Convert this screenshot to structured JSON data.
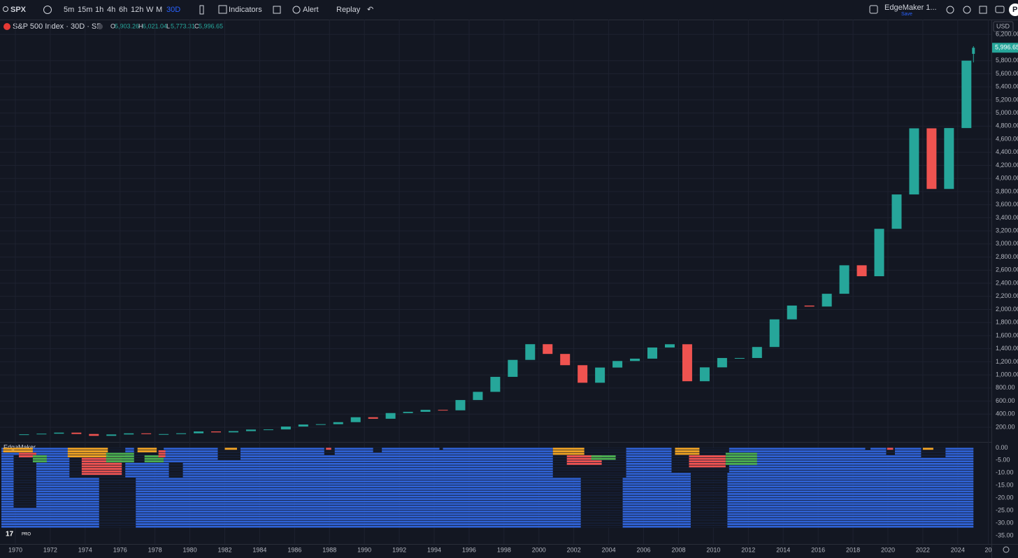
{
  "toolbar": {
    "symbol": "SPX",
    "intervals": [
      "5m",
      "15m",
      "1h",
      "4h",
      "6h",
      "12h",
      "W",
      "M",
      "30D"
    ],
    "indicators": "Indicators",
    "alert": "Alert",
    "replay": "Replay",
    "layout_name": "EdgeMaker 1...",
    "layout_status": "Save",
    "avatar": "P",
    "currency": "USD",
    "pro_badge": "PRO"
  },
  "chart_data": [
    {
      "type": "candlestick",
      "title": "S&P 500 Index · 30D · SP",
      "up_color": "#26a69a",
      "down_color": "#ef5350",
      "x": [
        1970,
        1971,
        1972,
        1973,
        1974,
        1975,
        1976,
        1977,
        1978,
        1979,
        1980,
        1981,
        1982,
        1983,
        1984,
        1985,
        1986,
        1987,
        1988,
        1989,
        1990,
        1991,
        1992,
        1993,
        1994,
        1995,
        1996,
        1997,
        1998,
        1999,
        2000,
        2001,
        2002,
        2003,
        2004,
        2005,
        2006,
        2007,
        2008,
        2009,
        2010,
        2011,
        2012,
        2013,
        2014,
        2015,
        2016,
        2017,
        2018,
        2019,
        2020,
        2021,
        2022,
        2023,
        2024
      ],
      "values": [
        92,
        102,
        118,
        97,
        69,
        90,
        107,
        95,
        96,
        108,
        136,
        122,
        141,
        165,
        167,
        211,
        242,
        247,
        278,
        353,
        330,
        417,
        436,
        466,
        459,
        616,
        741,
        970,
        1229,
        1469,
        1320,
        1148,
        880,
        1112,
        1212,
        1248,
        1418,
        1468,
        903,
        1115,
        1258,
        1258,
        1426,
        1848,
        2059,
        2044,
        2239,
        2674,
        2507,
        3231,
        3756,
        4766,
        3840,
        4770,
        5800
      ],
      "last": {
        "x": 2024.9,
        "labels": [
          "O",
          "H",
          "L",
          "C"
        ],
        "values": [
          5903.26,
          6021.04,
          5773.31,
          5996.65
        ],
        "value_labels": [
          "5,903.26",
          "6,021.04",
          "5,773.31",
          "5,996.65"
        ]
      },
      "xlim": [
        1969.12,
        2025.93
      ],
      "ylim": [
        -24,
        6427
      ],
      "xticks": [
        1970,
        1972,
        1974,
        1976,
        1978,
        1980,
        1982,
        1984,
        1986,
        1988,
        1990,
        1992,
        1994,
        1996,
        1998,
        2000,
        2002,
        2004,
        2006,
        2008,
        2010,
        2012,
        2014,
        2016,
        2018,
        2020,
        2022,
        2024,
        {
          "value": 2025.75,
          "label": "20"
        }
      ],
      "yticks": [
        {
          "value": 200,
          "label": "200.00"
        },
        {
          "value": 400,
          "label": "400.00"
        },
        {
          "value": 600,
          "label": "600.00"
        },
        {
          "value": 800,
          "label": "800.00"
        },
        {
          "value": 1000,
          "label": "1,000.00"
        },
        {
          "value": 1200,
          "label": "1,200.00"
        },
        {
          "value": 1400,
          "label": "1,400.00"
        },
        {
          "value": 1600,
          "label": "1,600.00"
        },
        {
          "value": 1800,
          "label": "1,800.00"
        },
        {
          "value": 2000,
          "label": "2,000.00"
        },
        {
          "value": 2200,
          "label": "2,200.00"
        },
        {
          "value": 2400,
          "label": "2,400.00"
        },
        {
          "value": 2600,
          "label": "2,600.00"
        },
        {
          "value": 2800,
          "label": "2,800.00"
        },
        {
          "value": 3000,
          "label": "3,000.00"
        },
        {
          "value": 3200,
          "label": "3,200.00"
        },
        {
          "value": 3400,
          "label": "3,400.00"
        },
        {
          "value": 3600,
          "label": "3,600.00"
        },
        {
          "value": 3800,
          "label": "3,800.00"
        },
        {
          "value": 4000,
          "label": "4,000.00"
        },
        {
          "value": 4200,
          "label": "4,200.00"
        },
        {
          "value": 4400,
          "label": "4,400.00"
        },
        {
          "value": 4600,
          "label": "4,600.00"
        },
        {
          "value": 4800,
          "label": "4,800.00"
        },
        {
          "value": 5000,
          "label": "5,000.00"
        },
        {
          "value": 5200,
          "label": "5,200.00"
        },
        {
          "value": 5400,
          "label": "5,400.00"
        },
        {
          "value": 5600,
          "label": "5,600.00"
        },
        {
          "value": 5800,
          "label": "5,800.00"
        },
        {
          "value": 6200,
          "label": "6,200.00"
        }
      ],
      "grid": true
    },
    {
      "type": "heatmap",
      "title": "EdgeMaker",
      "xlim": [
        1969.12,
        2025.93
      ],
      "ylim": [
        -38.3,
        2.06
      ],
      "yticks": [
        {
          "value": 0,
          "label": "0.00"
        },
        {
          "value": -5,
          "label": "-5.00"
        },
        {
          "value": -10,
          "label": "-10.00"
        },
        {
          "value": -15,
          "label": "-15.00"
        },
        {
          "value": -20,
          "label": "-20.00"
        },
        {
          "value": -25,
          "label": "-25.00"
        },
        {
          "value": -30,
          "label": "-30.00"
        },
        {
          "value": -35,
          "label": "-35.00"
        }
      ],
      "blocks": [
        {
          "start": 1969.2,
          "end": 2024.9,
          "top": 0,
          "bottom": -32,
          "color": "#2f62d6"
        },
        {
          "start": 1969.9,
          "end": 1971.2,
          "top": -3,
          "bottom": -24,
          "color": "#131722"
        },
        {
          "start": 1973.1,
          "end": 1976.3,
          "top": 0,
          "bottom": -12,
          "color": "#131722"
        },
        {
          "start": 1974.8,
          "end": 1976.9,
          "top": -12,
          "bottom": -32,
          "color": "#131722"
        },
        {
          "start": 1976.8,
          "end": 1978.5,
          "top": 0,
          "bottom": -6,
          "color": "#131722"
        },
        {
          "start": 1978.8,
          "end": 1979.6,
          "top": -6,
          "bottom": -12,
          "color": "#131722"
        },
        {
          "start": 1981.6,
          "end": 1982.9,
          "top": 0,
          "bottom": -5,
          "color": "#131722"
        },
        {
          "start": 1987.7,
          "end": 1988.3,
          "top": 0,
          "bottom": -3,
          "color": "#131722"
        },
        {
          "start": 1990.5,
          "end": 1991.0,
          "top": 0,
          "bottom": -2,
          "color": "#131722"
        },
        {
          "start": 1994.3,
          "end": 1994.5,
          "top": 0,
          "bottom": -1,
          "color": "#131722"
        },
        {
          "start": 2000.8,
          "end": 2005.0,
          "top": 0,
          "bottom": -12,
          "color": "#131722"
        },
        {
          "start": 2002.4,
          "end": 2004.8,
          "top": -12,
          "bottom": -32,
          "color": "#131722"
        },
        {
          "start": 2007.6,
          "end": 2010.9,
          "top": 0,
          "bottom": -10,
          "color": "#131722"
        },
        {
          "start": 2008.7,
          "end": 2010.8,
          "top": -10,
          "bottom": -32,
          "color": "#131722"
        },
        {
          "start": 2018.7,
          "end": 2019.0,
          "top": 0,
          "bottom": -1,
          "color": "#131722"
        },
        {
          "start": 2019.9,
          "end": 2020.4,
          "top": 0,
          "bottom": -3,
          "color": "#131722"
        },
        {
          "start": 2021.9,
          "end": 2023.3,
          "top": 0,
          "bottom": -4,
          "color": "#131722"
        },
        {
          "start": 1969.3,
          "end": 1971.0,
          "top": 0,
          "bottom": -2,
          "color": "#f5a623"
        },
        {
          "start": 1970.2,
          "end": 1971.2,
          "top": -2,
          "bottom": -4,
          "color": "#ef5350"
        },
        {
          "start": 1971.0,
          "end": 1971.8,
          "top": -3,
          "bottom": -6,
          "color": "#4caf50"
        },
        {
          "start": 1973.0,
          "end": 1975.3,
          "top": 0,
          "bottom": -4,
          "color": "#f5a623"
        },
        {
          "start": 1973.8,
          "end": 1976.1,
          "top": -4,
          "bottom": -11,
          "color": "#ef5350"
        },
        {
          "start": 1975.2,
          "end": 1976.8,
          "top": -2,
          "bottom": -6,
          "color": "#4caf50"
        },
        {
          "start": 1977.0,
          "end": 1978.1,
          "top": 0,
          "bottom": -2,
          "color": "#f5a623"
        },
        {
          "start": 1977.4,
          "end": 1978.5,
          "top": -3,
          "bottom": -6,
          "color": "#4caf50"
        },
        {
          "start": 1978.2,
          "end": 1978.6,
          "top": -1,
          "bottom": -4,
          "color": "#ef5350"
        },
        {
          "start": 1982.0,
          "end": 1982.7,
          "top": 0,
          "bottom": -1,
          "color": "#f5a623"
        },
        {
          "start": 1987.8,
          "end": 1988.1,
          "top": 0,
          "bottom": -1,
          "color": "#ef5350"
        },
        {
          "start": 2000.8,
          "end": 2002.6,
          "top": 0,
          "bottom": -3,
          "color": "#f5a623"
        },
        {
          "start": 2001.6,
          "end": 2003.6,
          "top": -3,
          "bottom": -7,
          "color": "#ef5350"
        },
        {
          "start": 2003.0,
          "end": 2004.4,
          "top": -3,
          "bottom": -5,
          "color": "#4caf50"
        },
        {
          "start": 2007.8,
          "end": 2009.2,
          "top": 0,
          "bottom": -3,
          "color": "#f5a623"
        },
        {
          "start": 2008.6,
          "end": 2010.7,
          "top": -3,
          "bottom": -8,
          "color": "#ef5350"
        },
        {
          "start": 2010.7,
          "end": 2012.5,
          "top": -2,
          "bottom": -7,
          "color": "#4caf50"
        },
        {
          "start": 2019.95,
          "end": 2020.3,
          "top": 0,
          "bottom": -1,
          "color": "#ef5350"
        },
        {
          "start": 2022.0,
          "end": 2022.6,
          "top": 0,
          "bottom": -1,
          "color": "#f5a623"
        }
      ]
    }
  ]
}
